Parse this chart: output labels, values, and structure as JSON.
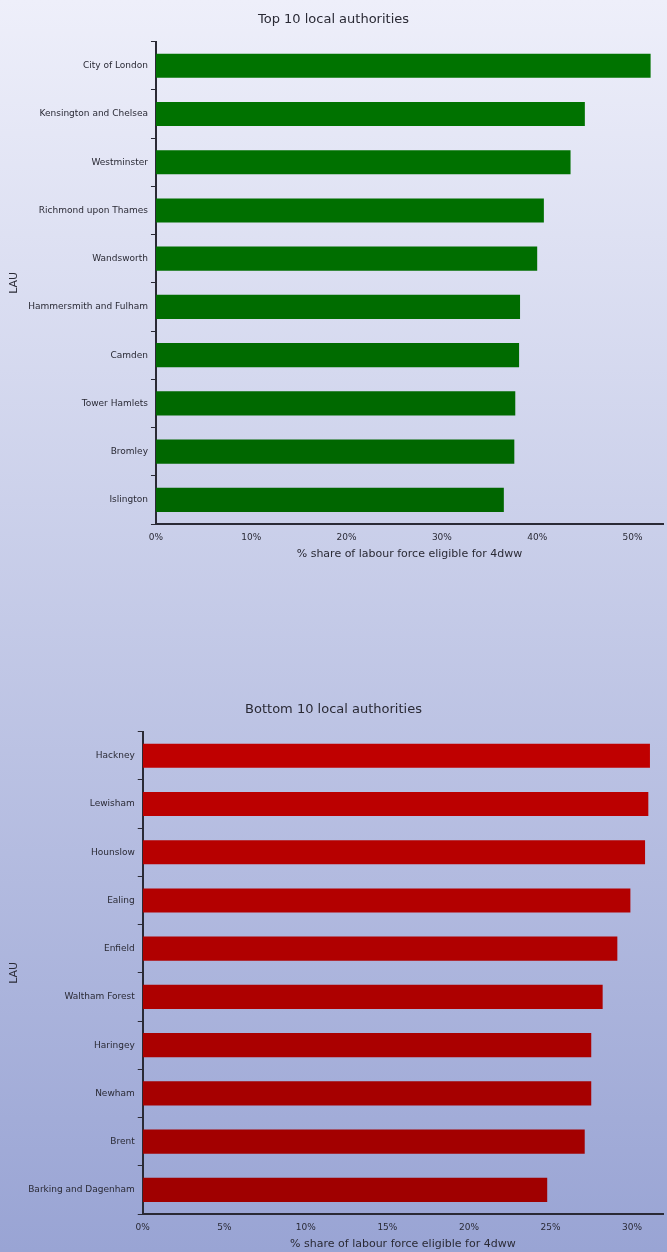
{
  "chart_data": [
    {
      "type": "bar",
      "orientation": "horizontal",
      "title": "Top 10 local authorities",
      "xlabel": "% share of labour force eligible for 4dww",
      "ylabel": "LAU",
      "categories": [
        "City of London",
        "Kensington and Chelsea",
        "Westminster",
        "Richmond upon Thames",
        "Wandsworth",
        "Hammersmith and Fulham",
        "Camden",
        "Tower Hamlets",
        "Bromley",
        "Islington"
      ],
      "values": [
        51.9,
        45.0,
        43.5,
        40.7,
        40.0,
        38.2,
        38.1,
        37.7,
        37.6,
        36.5
      ],
      "colors": [
        "#007300",
        "#007200",
        "#007100",
        "#006f00",
        "#006e00",
        "#006c00",
        "#006b00",
        "#006900",
        "#006700",
        "#006600"
      ],
      "xlim": [
        0,
        53.2
      ],
      "xticks": [
        {
          "value": 0,
          "label": "0%"
        },
        {
          "value": 10,
          "label": "10%"
        },
        {
          "value": 20,
          "label": "20%"
        },
        {
          "value": 30,
          "label": "30%"
        },
        {
          "value": 40,
          "label": "40%"
        },
        {
          "value": 50,
          "label": "50%"
        }
      ],
      "grid": false,
      "legend": false
    },
    {
      "type": "bar",
      "orientation": "horizontal",
      "title": "Bottom 10 local authorities",
      "xlabel": "% share of labour force eligible for 4dww",
      "ylabel": "LAU",
      "categories": [
        "Hackney",
        "Lewisham",
        "Hounslow",
        "Ealing",
        "Enfield",
        "Waltham Forest",
        "Haringey",
        "Newham",
        "Brent",
        "Barking and Dagenham"
      ],
      "values": [
        31.1,
        31.0,
        30.8,
        29.9,
        29.1,
        28.2,
        27.5,
        27.5,
        27.1,
        24.8
      ],
      "colors": [
        "#bf0000",
        "#bb0000",
        "#b70000",
        "#b30000",
        "#b00000",
        "#ad0000",
        "#aa0000",
        "#a60000",
        "#a30000",
        "#a00000"
      ],
      "xlim": [
        0,
        31.9
      ],
      "xticks": [
        {
          "value": 0,
          "label": "0%"
        },
        {
          "value": 5,
          "label": "5%"
        },
        {
          "value": 10,
          "label": "10%"
        },
        {
          "value": 15,
          "label": "15%"
        },
        {
          "value": 20,
          "label": "20%"
        },
        {
          "value": 25,
          "label": "25%"
        },
        {
          "value": 30,
          "label": "30%"
        }
      ],
      "grid": false,
      "legend": false
    }
  ]
}
